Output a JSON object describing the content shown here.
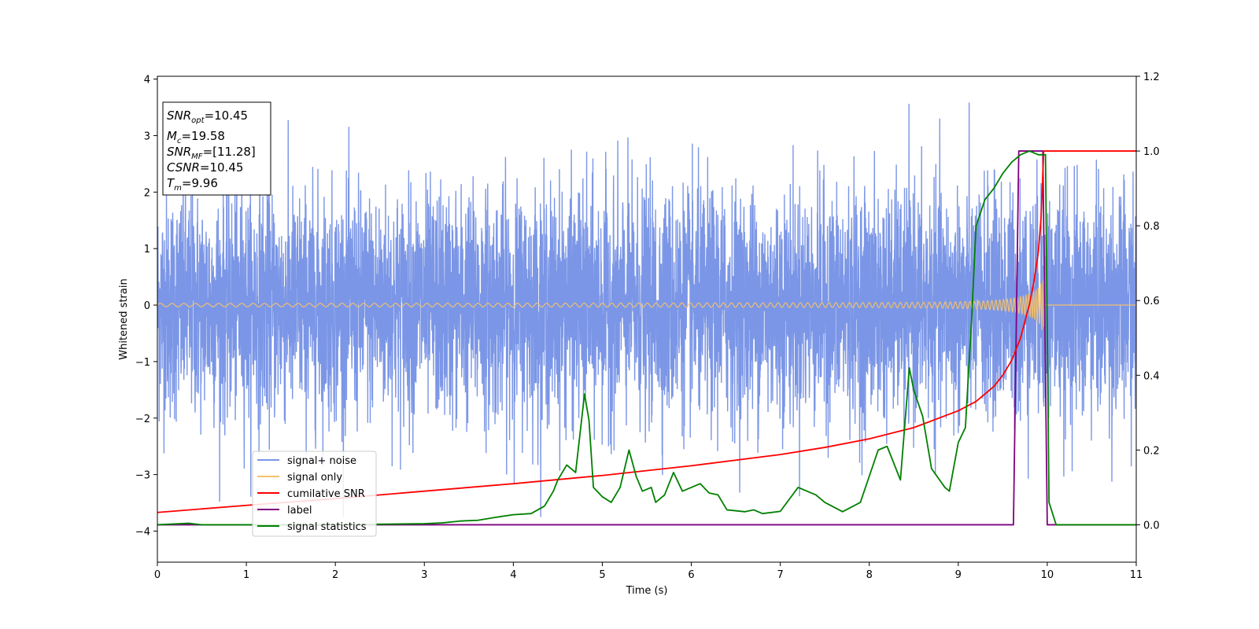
{
  "chart_data": {
    "type": "line",
    "title": "",
    "xlabel": "Time (s)",
    "ylabel": "Whitened strain",
    "ylabel_right": "",
    "xlim": [
      0,
      11
    ],
    "ylim": [
      -4.55,
      4.05
    ],
    "ylim_right": [
      -0.1,
      1.2
    ],
    "x_ticks": [
      0,
      1,
      2,
      3,
      4,
      5,
      6,
      7,
      8,
      9,
      10,
      11
    ],
    "y_ticks": [
      -4,
      -3,
      -2,
      -1,
      0,
      1,
      2,
      3,
      4
    ],
    "y_ticks_right": [
      0.0,
      0.2,
      0.4,
      0.6,
      0.8,
      1.0,
      1.2
    ],
    "grid": false,
    "legend_position": "lower-left",
    "annotation": {
      "lines": [
        {
          "base": "SNR",
          "sub": "opt",
          "value": "=10.45"
        },
        {
          "base": "M",
          "sub": "c",
          "value": "=19.58"
        },
        {
          "base": "SNR",
          "sub": "MF",
          "value": "=[11.28]"
        },
        {
          "base": "CSNR",
          "sub": "",
          "value": "=10.45"
        },
        {
          "base": "T",
          "sub": "m",
          "value": "=9.96"
        }
      ]
    },
    "series": [
      {
        "name": "signal+ noise",
        "axis": "left",
        "color": "#7b96e6",
        "kind": "gaussian-noise",
        "sigma": 1.0,
        "peak_max": 3.65,
        "peak_min": -3.75
      },
      {
        "name": "signal only",
        "axis": "left",
        "color": "#f5c26b",
        "kind": "chirp",
        "merger_time": 9.96,
        "end_time": 9.96,
        "amplitude_start": 0.03,
        "amplitude_peak": 0.9,
        "frequency_start": 7.5,
        "frequency_end": 38
      },
      {
        "name": "cumilative SNR",
        "axis": "right",
        "color": "#ff0000",
        "x": [
          0,
          1,
          2,
          3,
          4,
          5,
          6,
          7,
          7.5,
          8,
          8.5,
          9,
          9.2,
          9.4,
          9.5,
          9.6,
          9.7,
          9.8,
          9.85,
          9.9,
          9.93,
          9.96,
          9.97,
          11
        ],
        "y": [
          0.033,
          0.052,
          0.07,
          0.09,
          0.11,
          0.132,
          0.158,
          0.188,
          0.207,
          0.23,
          0.26,
          0.305,
          0.33,
          0.37,
          0.4,
          0.44,
          0.5,
          0.59,
          0.65,
          0.73,
          0.82,
          1.0,
          1.0,
          1.0
        ]
      },
      {
        "name": "label",
        "axis": "right",
        "color": "#800080",
        "x": [
          0,
          9.62,
          9.68,
          9.95,
          10.0,
          11
        ],
        "y": [
          0,
          0,
          1.0,
          1.0,
          0,
          0
        ]
      },
      {
        "name": "signal statistics",
        "axis": "right",
        "color": "#008000",
        "x": [
          0,
          0.35,
          0.5,
          1,
          2,
          3,
          3.2,
          3.4,
          3.6,
          3.8,
          4.0,
          4.2,
          4.35,
          4.45,
          4.5,
          4.6,
          4.7,
          4.8,
          4.85,
          4.9,
          5.0,
          5.1,
          5.2,
          5.3,
          5.38,
          5.45,
          5.55,
          5.6,
          5.7,
          5.8,
          5.9,
          6.0,
          6.1,
          6.2,
          6.3,
          6.4,
          6.6,
          6.7,
          6.8,
          7.0,
          7.2,
          7.3,
          7.4,
          7.5,
          7.7,
          7.9,
          8.1,
          8.2,
          8.25,
          8.35,
          8.45,
          8.5,
          8.6,
          8.7,
          8.85,
          8.9,
          9.0,
          9.08,
          9.15,
          9.2,
          9.3,
          9.4,
          9.5,
          9.6,
          9.7,
          9.8,
          9.9,
          9.98,
          10.02,
          10.1,
          10.5,
          11
        ],
        "y": [
          0.0,
          0.004,
          0.0,
          0.0,
          0.0,
          0.003,
          0.005,
          0.01,
          0.012,
          0.02,
          0.027,
          0.03,
          0.05,
          0.09,
          0.12,
          0.16,
          0.14,
          0.35,
          0.28,
          0.1,
          0.075,
          0.06,
          0.1,
          0.2,
          0.13,
          0.09,
          0.1,
          0.06,
          0.08,
          0.14,
          0.09,
          0.1,
          0.11,
          0.085,
          0.08,
          0.04,
          0.035,
          0.04,
          0.03,
          0.036,
          0.1,
          0.09,
          0.08,
          0.06,
          0.035,
          0.06,
          0.2,
          0.21,
          0.18,
          0.12,
          0.42,
          0.36,
          0.29,
          0.15,
          0.1,
          0.09,
          0.22,
          0.26,
          0.55,
          0.8,
          0.87,
          0.9,
          0.94,
          0.97,
          0.99,
          1.0,
          0.99,
          0.99,
          0.06,
          0.0,
          0.0,
          0.0
        ]
      }
    ]
  }
}
